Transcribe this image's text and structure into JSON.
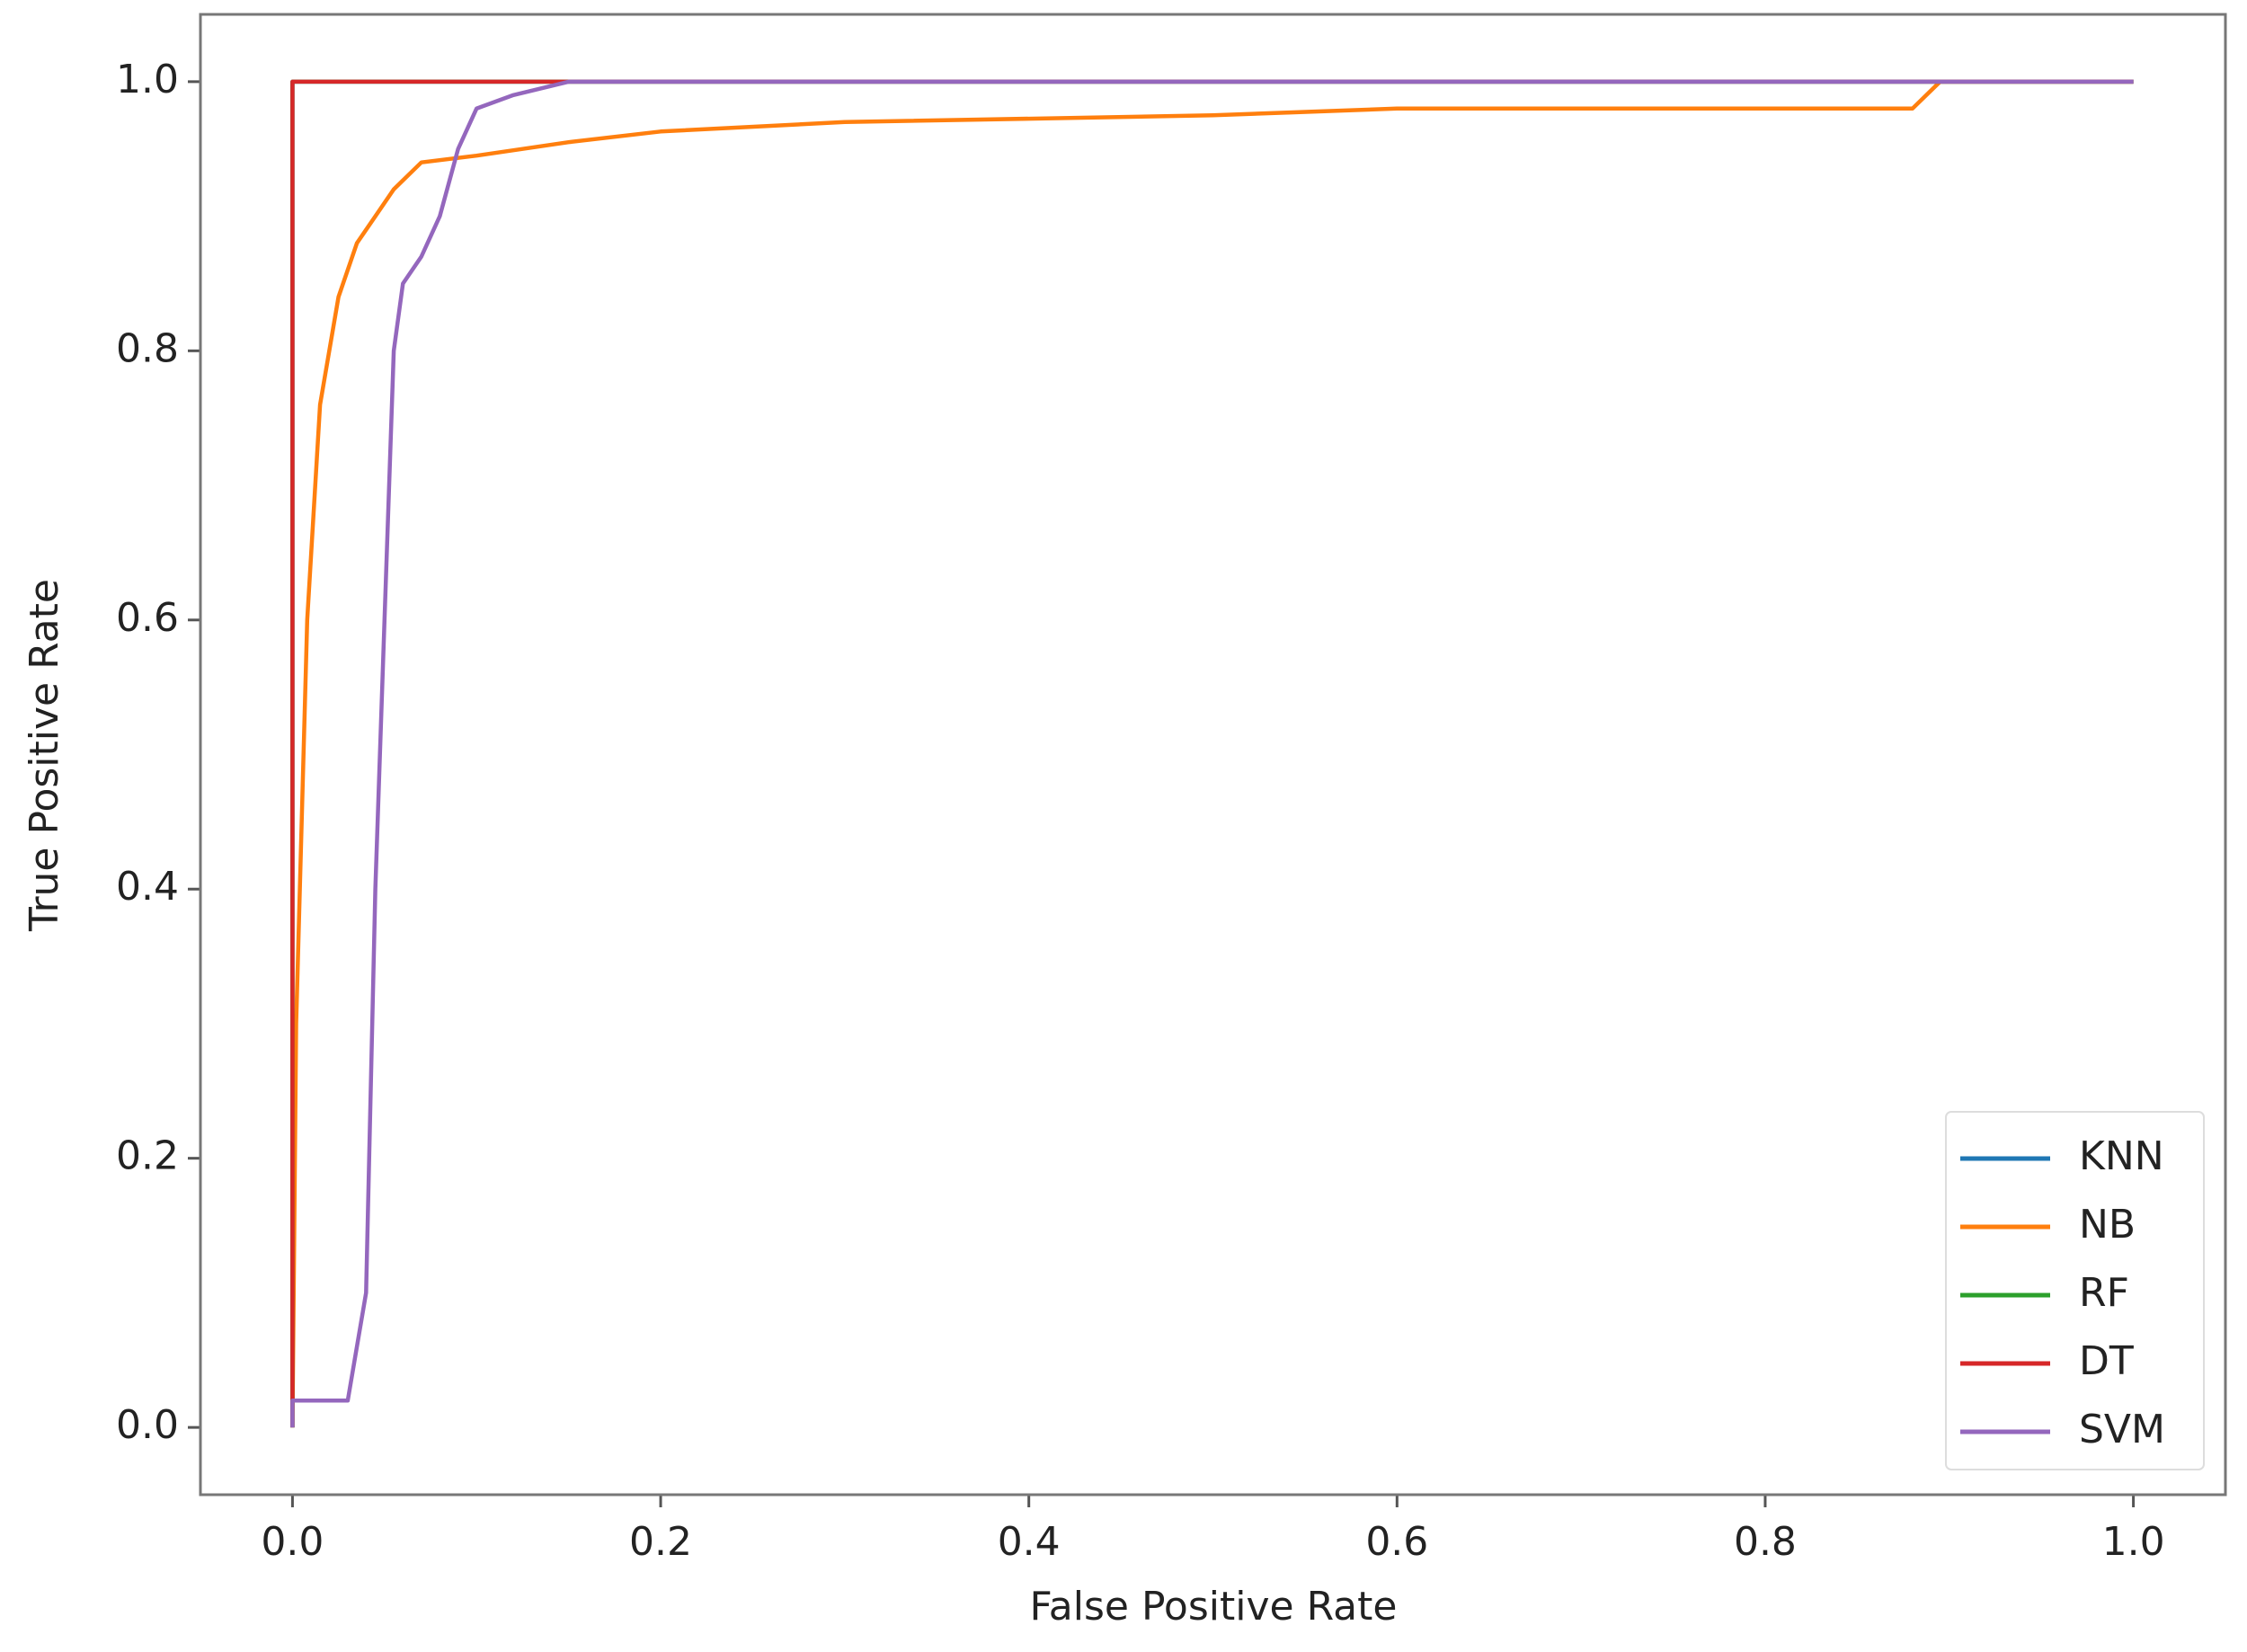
{
  "chart_data": {
    "type": "line",
    "xlabel": "False Positive Rate",
    "ylabel": "True Positive Rate",
    "xlim": [
      -0.05,
      1.05
    ],
    "ylim": [
      -0.05,
      1.05
    ],
    "xticks": [
      {
        "value": 0,
        "label": "0.0"
      },
      0.2,
      0.4,
      0.6,
      0.8,
      {
        "value": 1,
        "label": "1.0"
      }
    ],
    "yticks": [
      {
        "value": 0,
        "label": "0.0"
      },
      0.2,
      0.4,
      0.6,
      0.8,
      {
        "value": 1,
        "label": "1.0"
      }
    ],
    "grid": false,
    "legend": "lower right",
    "series": [
      {
        "name": "KNN",
        "color": "#1f77b4",
        "x": [
          0,
          0,
          1
        ],
        "values": [
          0,
          1,
          1
        ]
      },
      {
        "name": "NB",
        "color": "#ff7f0e",
        "x": [
          0,
          0.002,
          0.008,
          0.015,
          0.025,
          0.035,
          0.045,
          0.055,
          0.07,
          0.1,
          0.15,
          0.2,
          0.3,
          0.5,
          0.6,
          0.88,
          0.895,
          1
        ],
        "values": [
          0,
          0.3,
          0.6,
          0.76,
          0.84,
          0.88,
          0.9,
          0.92,
          0.94,
          0.945,
          0.955,
          0.963,
          0.97,
          0.975,
          0.98,
          0.98,
          1,
          1
        ]
      },
      {
        "name": "RF",
        "color": "#2ca02c",
        "x": [
          0,
          0,
          1
        ],
        "values": [
          0,
          1,
          1
        ]
      },
      {
        "name": "DT",
        "color": "#d62728",
        "x": [
          0,
          0,
          1
        ],
        "values": [
          0,
          1,
          1
        ]
      },
      {
        "name": "SVM",
        "color": "#9467bd",
        "x": [
          0,
          0,
          0.03,
          0.035,
          0.04,
          0.045,
          0.05,
          0.055,
          0.06,
          0.07,
          0.08,
          0.09,
          0.1,
          0.12,
          0.15,
          1
        ],
        "values": [
          0,
          0.02,
          0.02,
          0.06,
          0.1,
          0.4,
          0.6,
          0.8,
          0.85,
          0.87,
          0.9,
          0.95,
          0.98,
          0.99,
          1,
          1
        ]
      }
    ]
  }
}
